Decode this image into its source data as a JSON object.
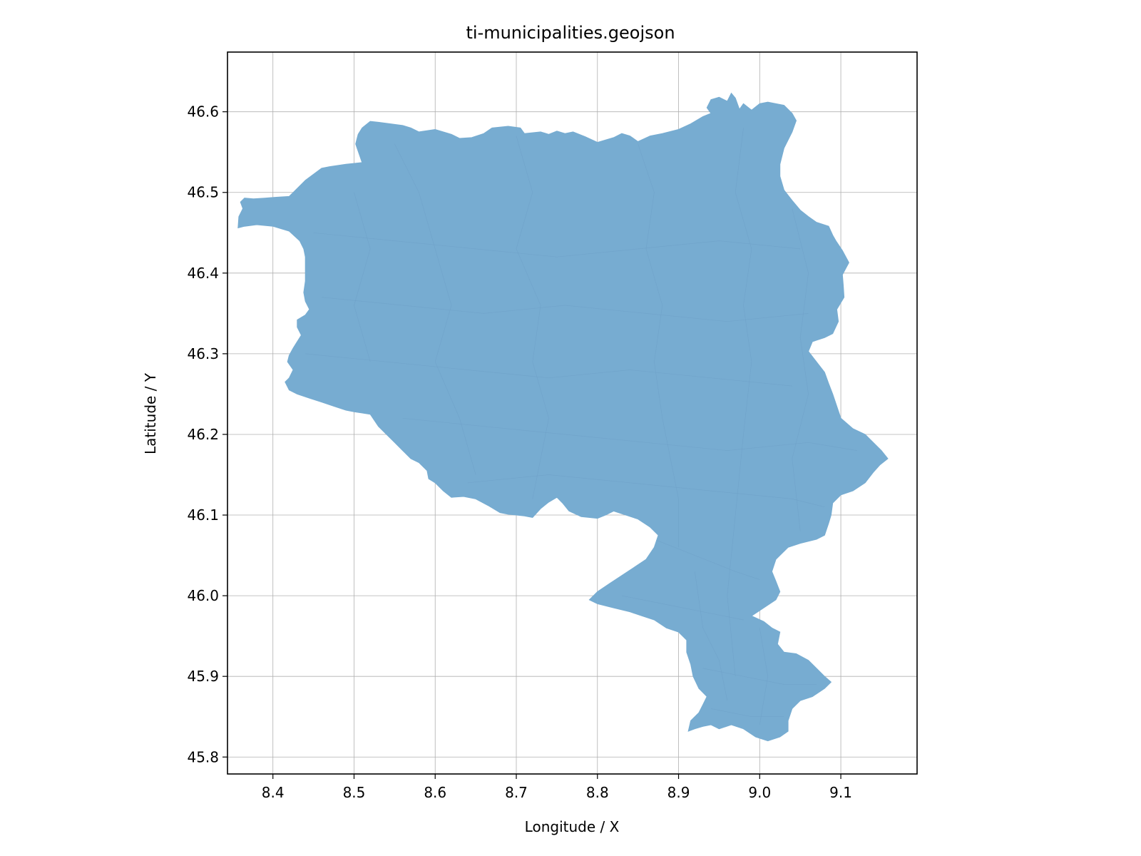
{
  "chart_data": {
    "type": "map",
    "title": "ti-municipalities.geojson",
    "xlabel": "Longitude / X",
    "ylabel": "Latitude / Y",
    "xlim": [
      8.344,
      9.194
    ],
    "ylim": [
      45.779,
      46.674
    ],
    "xticks": [
      8.4,
      8.5,
      8.6,
      8.7,
      8.8,
      8.9,
      9.0,
      9.1
    ],
    "yticks": [
      45.8,
      45.9,
      46.0,
      46.1,
      46.2,
      46.3,
      46.4,
      46.5,
      46.6
    ],
    "grid": true,
    "fill_color": "#77acd1",
    "region_outline": [
      [
        8.357,
        46.456
      ],
      [
        8.358,
        46.47
      ],
      [
        8.363,
        46.48
      ],
      [
        8.36,
        46.488
      ],
      [
        8.365,
        46.493
      ],
      [
        8.376,
        46.492
      ],
      [
        8.39,
        46.493
      ],
      [
        8.404,
        46.494
      ],
      [
        8.42,
        46.495
      ],
      [
        8.428,
        46.503
      ],
      [
        8.44,
        46.515
      ],
      [
        8.46,
        46.53
      ],
      [
        8.47,
        46.532
      ],
      [
        8.49,
        46.535
      ],
      [
        8.51,
        46.537
      ],
      [
        8.502,
        46.56
      ],
      [
        8.505,
        46.572
      ],
      [
        8.51,
        46.58
      ],
      [
        8.52,
        46.588
      ],
      [
        8.53,
        46.587
      ],
      [
        8.545,
        46.585
      ],
      [
        8.56,
        46.583
      ],
      [
        8.57,
        46.58
      ],
      [
        8.58,
        46.575
      ],
      [
        8.6,
        46.578
      ],
      [
        8.62,
        46.572
      ],
      [
        8.63,
        46.567
      ],
      [
        8.645,
        46.568
      ],
      [
        8.66,
        46.573
      ],
      [
        8.67,
        46.58
      ],
      [
        8.69,
        46.582
      ],
      [
        8.705,
        46.58
      ],
      [
        8.71,
        46.573
      ],
      [
        8.73,
        46.575
      ],
      [
        8.74,
        46.572
      ],
      [
        8.75,
        46.576
      ],
      [
        8.76,
        46.573
      ],
      [
        8.77,
        46.575
      ],
      [
        8.785,
        46.569
      ],
      [
        8.8,
        46.562
      ],
      [
        8.82,
        46.568
      ],
      [
        8.83,
        46.573
      ],
      [
        8.84,
        46.57
      ],
      [
        8.85,
        46.563
      ],
      [
        8.865,
        46.57
      ],
      [
        8.88,
        46.573
      ],
      [
        8.9,
        46.578
      ],
      [
        8.915,
        46.585
      ],
      [
        8.93,
        46.594
      ],
      [
        8.94,
        46.598
      ],
      [
        8.935,
        46.605
      ],
      [
        8.94,
        46.615
      ],
      [
        8.95,
        46.618
      ],
      [
        8.96,
        46.613
      ],
      [
        8.965,
        46.623
      ],
      [
        8.97,
        46.617
      ],
      [
        8.975,
        46.603
      ],
      [
        8.98,
        46.61
      ],
      [
        8.99,
        46.602
      ],
      [
        9.0,
        46.61
      ],
      [
        9.01,
        46.612
      ],
      [
        9.02,
        46.61
      ],
      [
        9.03,
        46.608
      ],
      [
        9.04,
        46.598
      ],
      [
        9.045,
        46.589
      ],
      [
        9.04,
        46.575
      ],
      [
        9.03,
        46.555
      ],
      [
        9.025,
        46.535
      ],
      [
        9.025,
        46.52
      ],
      [
        9.03,
        46.503
      ],
      [
        9.04,
        46.49
      ],
      [
        9.05,
        46.478
      ],
      [
        9.06,
        46.47
      ],
      [
        9.07,
        46.463
      ],
      [
        9.085,
        46.458
      ],
      [
        9.09,
        46.447
      ],
      [
        9.094,
        46.44
      ],
      [
        9.102,
        46.428
      ],
      [
        9.11,
        46.413
      ],
      [
        9.102,
        46.398
      ],
      [
        9.103,
        46.385
      ],
      [
        9.104,
        46.37
      ],
      [
        9.095,
        46.355
      ],
      [
        9.097,
        46.34
      ],
      [
        9.09,
        46.325
      ],
      [
        9.08,
        46.32
      ],
      [
        9.065,
        46.315
      ],
      [
        9.06,
        46.303
      ],
      [
        9.07,
        46.29
      ],
      [
        9.08,
        46.277
      ],
      [
        9.085,
        46.263
      ],
      [
        9.09,
        46.25
      ],
      [
        9.095,
        46.235
      ],
      [
        9.1,
        46.22
      ],
      [
        9.115,
        46.207
      ],
      [
        9.13,
        46.2
      ],
      [
        9.14,
        46.19
      ],
      [
        9.15,
        46.18
      ],
      [
        9.158,
        46.17
      ],
      [
        9.148,
        46.162
      ],
      [
        9.14,
        46.153
      ],
      [
        9.13,
        46.14
      ],
      [
        9.115,
        46.13
      ],
      [
        9.1,
        46.125
      ],
      [
        9.09,
        46.115
      ],
      [
        9.088,
        46.1
      ],
      [
        9.085,
        46.09
      ],
      [
        9.08,
        46.075
      ],
      [
        9.07,
        46.07
      ],
      [
        9.05,
        46.065
      ],
      [
        9.035,
        46.06
      ],
      [
        9.02,
        46.045
      ],
      [
        9.015,
        46.03
      ],
      [
        9.02,
        46.018
      ],
      [
        9.025,
        46.005
      ],
      [
        9.02,
        45.995
      ],
      [
        9.005,
        45.985
      ],
      [
        8.99,
        45.975
      ],
      [
        9.005,
        45.968
      ],
      [
        9.015,
        45.96
      ],
      [
        9.025,
        45.955
      ],
      [
        9.022,
        45.94
      ],
      [
        9.03,
        45.93
      ],
      [
        9.045,
        45.928
      ],
      [
        9.06,
        45.92
      ],
      [
        9.07,
        45.91
      ],
      [
        9.08,
        45.9
      ],
      [
        9.088,
        45.893
      ],
      [
        9.08,
        45.885
      ],
      [
        9.065,
        45.875
      ],
      [
        9.05,
        45.87
      ],
      [
        9.04,
        45.86
      ],
      [
        9.035,
        45.845
      ],
      [
        9.035,
        45.832
      ],
      [
        9.025,
        45.825
      ],
      [
        9.01,
        45.82
      ],
      [
        8.995,
        45.825
      ],
      [
        8.98,
        45.835
      ],
      [
        8.965,
        45.84
      ],
      [
        8.95,
        45.835
      ],
      [
        8.94,
        45.84
      ],
      [
        8.93,
        45.838
      ],
      [
        8.92,
        45.835
      ],
      [
        8.912,
        45.832
      ],
      [
        8.915,
        45.845
      ],
      [
        8.925,
        45.855
      ],
      [
        8.93,
        45.865
      ],
      [
        8.935,
        45.875
      ],
      [
        8.925,
        45.885
      ],
      [
        8.918,
        45.9
      ],
      [
        8.915,
        45.915
      ],
      [
        8.91,
        45.93
      ],
      [
        8.91,
        45.945
      ],
      [
        8.9,
        45.955
      ],
      [
        8.885,
        45.96
      ],
      [
        8.87,
        45.97
      ],
      [
        8.855,
        45.975
      ],
      [
        8.84,
        45.98
      ],
      [
        8.82,
        45.985
      ],
      [
        8.8,
        45.99
      ],
      [
        8.79,
        45.995
      ],
      [
        8.8,
        46.005
      ],
      [
        8.815,
        46.015
      ],
      [
        8.83,
        46.025
      ],
      [
        8.845,
        46.035
      ],
      [
        8.86,
        46.045
      ],
      [
        8.87,
        46.06
      ],
      [
        8.875,
        46.075
      ],
      [
        8.865,
        46.085
      ],
      [
        8.85,
        46.095
      ],
      [
        8.835,
        46.1
      ],
      [
        8.82,
        46.105
      ],
      [
        8.81,
        46.1
      ],
      [
        8.8,
        46.096
      ],
      [
        8.78,
        46.098
      ],
      [
        8.765,
        46.105
      ],
      [
        8.757,
        46.115
      ],
      [
        8.75,
        46.122
      ],
      [
        8.74,
        46.116
      ],
      [
        8.73,
        46.108
      ],
      [
        8.72,
        46.097
      ],
      [
        8.71,
        46.099
      ],
      [
        8.7,
        46.1
      ],
      [
        8.69,
        46.101
      ],
      [
        8.68,
        46.103
      ],
      [
        8.665,
        46.112
      ],
      [
        8.65,
        46.12
      ],
      [
        8.635,
        46.123
      ],
      [
        8.62,
        46.122
      ],
      [
        8.61,
        46.13
      ],
      [
        8.6,
        46.14
      ],
      [
        8.592,
        46.145
      ],
      [
        8.59,
        46.155
      ],
      [
        8.58,
        46.165
      ],
      [
        8.57,
        46.17
      ],
      [
        8.56,
        46.18
      ],
      [
        8.55,
        46.19
      ],
      [
        8.54,
        46.2
      ],
      [
        8.53,
        46.21
      ],
      [
        8.52,
        46.225
      ],
      [
        8.5,
        46.228
      ],
      [
        8.49,
        46.23
      ],
      [
        8.475,
        46.235
      ],
      [
        8.46,
        46.24
      ],
      [
        8.445,
        46.245
      ],
      [
        8.43,
        46.25
      ],
      [
        8.42,
        46.255
      ],
      [
        8.415,
        46.265
      ],
      [
        8.42,
        46.27
      ],
      [
        8.425,
        46.28
      ],
      [
        8.418,
        46.29
      ],
      [
        8.42,
        46.298
      ],
      [
        8.425,
        46.307
      ],
      [
        8.43,
        46.315
      ],
      [
        8.435,
        46.323
      ],
      [
        8.43,
        46.333
      ],
      [
        8.43,
        46.342
      ],
      [
        8.44,
        46.348
      ],
      [
        8.445,
        46.355
      ],
      [
        8.44,
        46.365
      ],
      [
        8.438,
        46.376
      ],
      [
        8.44,
        46.39
      ],
      [
        8.44,
        46.405
      ],
      [
        8.44,
        46.42
      ],
      [
        8.438,
        46.43
      ],
      [
        8.433,
        46.44
      ],
      [
        8.42,
        46.452
      ],
      [
        8.4,
        46.458
      ],
      [
        8.38,
        46.46
      ],
      [
        8.365,
        46.458
      ]
    ],
    "internal_boundaries": [
      [
        [
          8.45,
          46.45
        ],
        [
          8.55,
          46.44
        ],
        [
          8.65,
          46.43
        ],
        [
          8.75,
          46.42
        ],
        [
          8.85,
          46.43
        ],
        [
          8.95,
          46.44
        ],
        [
          9.05,
          46.43
        ]
      ],
      [
        [
          8.46,
          46.37
        ],
        [
          8.56,
          46.36
        ],
        [
          8.66,
          46.35
        ],
        [
          8.76,
          46.36
        ],
        [
          8.86,
          46.35
        ],
        [
          8.96,
          46.34
        ],
        [
          9.06,
          46.35
        ]
      ],
      [
        [
          8.44,
          46.3
        ],
        [
          8.54,
          46.29
        ],
        [
          8.64,
          46.28
        ],
        [
          8.74,
          46.27
        ],
        [
          8.84,
          46.28
        ],
        [
          8.94,
          46.27
        ],
        [
          9.04,
          46.26
        ]
      ],
      [
        [
          8.56,
          46.22
        ],
        [
          8.66,
          46.21
        ],
        [
          8.76,
          46.2
        ],
        [
          8.86,
          46.19
        ],
        [
          8.96,
          46.18
        ],
        [
          9.06,
          46.19
        ],
        [
          9.12,
          46.18
        ]
      ],
      [
        [
          8.64,
          46.14
        ],
        [
          8.74,
          46.15
        ],
        [
          8.84,
          46.14
        ],
        [
          8.94,
          46.13
        ],
        [
          9.04,
          46.12
        ],
        [
          9.08,
          46.11
        ]
      ],
      [
        [
          8.87,
          46.07
        ],
        [
          8.92,
          46.05
        ],
        [
          8.97,
          46.03
        ],
        [
          9.0,
          46.02
        ]
      ],
      [
        [
          8.83,
          46.0
        ],
        [
          8.88,
          45.99
        ],
        [
          8.93,
          45.98
        ],
        [
          8.98,
          45.97
        ]
      ],
      [
        [
          8.93,
          45.91
        ],
        [
          8.98,
          45.9
        ],
        [
          9.03,
          45.89
        ],
        [
          9.07,
          45.89
        ]
      ],
      [
        [
          8.94,
          45.86
        ],
        [
          8.99,
          45.85
        ],
        [
          9.03,
          45.85
        ]
      ],
      [
        [
          8.55,
          46.56
        ],
        [
          8.58,
          46.5
        ],
        [
          8.6,
          46.43
        ],
        [
          8.62,
          46.36
        ],
        [
          8.6,
          46.29
        ],
        [
          8.63,
          46.22
        ],
        [
          8.65,
          46.15
        ]
      ],
      [
        [
          8.7,
          46.57
        ],
        [
          8.72,
          46.5
        ],
        [
          8.7,
          46.43
        ],
        [
          8.73,
          46.36
        ],
        [
          8.72,
          46.29
        ],
        [
          8.74,
          46.22
        ],
        [
          8.72,
          46.12
        ]
      ],
      [
        [
          8.85,
          46.56
        ],
        [
          8.87,
          46.5
        ],
        [
          8.86,
          46.43
        ],
        [
          8.88,
          46.36
        ],
        [
          8.87,
          46.29
        ],
        [
          8.88,
          46.22
        ],
        [
          8.9,
          46.12
        ],
        [
          8.9,
          46.06
        ]
      ],
      [
        [
          8.98,
          46.58
        ],
        [
          8.97,
          46.5
        ],
        [
          8.99,
          46.43
        ],
        [
          8.98,
          46.36
        ],
        [
          8.99,
          46.29
        ],
        [
          8.98,
          46.2
        ],
        [
          8.97,
          46.1
        ],
        [
          8.96,
          46.0
        ],
        [
          8.97,
          45.9
        ]
      ],
      [
        [
          8.5,
          46.5
        ],
        [
          8.52,
          46.43
        ],
        [
          8.5,
          46.36
        ],
        [
          8.52,
          46.29
        ]
      ],
      [
        [
          9.04,
          46.48
        ],
        [
          9.06,
          46.4
        ],
        [
          9.05,
          46.32
        ],
        [
          9.06,
          46.25
        ],
        [
          9.04,
          46.17
        ],
        [
          9.05,
          46.08
        ]
      ],
      [
        [
          8.92,
          46.03
        ],
        [
          8.93,
          45.96
        ],
        [
          8.95,
          45.92
        ],
        [
          8.96,
          45.87
        ]
      ],
      [
        [
          9.0,
          45.96
        ],
        [
          9.01,
          45.9
        ],
        [
          9.0,
          45.84
        ]
      ]
    ]
  }
}
